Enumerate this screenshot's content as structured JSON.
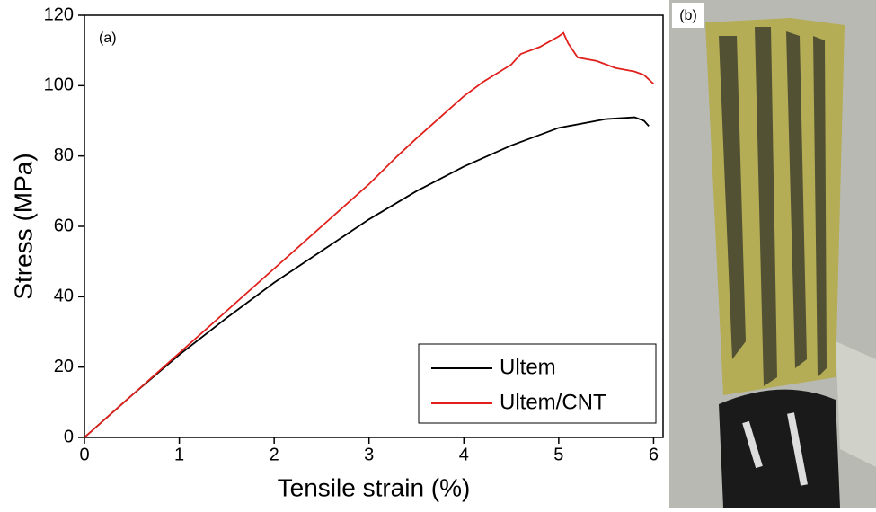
{
  "chart_data": {
    "type": "line",
    "xlabel": "Tensile strain (%)",
    "ylabel": "Stress (MPa)",
    "annotations": [
      "(a)",
      "(b)"
    ],
    "xlim": [
      0,
      6.1
    ],
    "ylim": [
      0,
      120
    ],
    "xticks": [
      0,
      1,
      2,
      3,
      4,
      5,
      6
    ],
    "yticks": [
      0,
      20,
      40,
      60,
      80,
      100,
      120
    ],
    "legend": "lower right",
    "series": [
      {
        "name": "Ultem",
        "color": "#000000",
        "x": [
          0,
          0.5,
          1,
          1.5,
          2,
          2.5,
          3,
          3.5,
          4,
          4.5,
          5,
          5.5,
          5.8,
          5.9,
          5.95
        ],
        "values": [
          0,
          12,
          23.5,
          34,
          44,
          53,
          62,
          70,
          77,
          83,
          88,
          90.5,
          91,
          90,
          88.5
        ]
      },
      {
        "name": "Ultem/CNT",
        "color": "#e0201b",
        "x": [
          0,
          0.5,
          1,
          1.5,
          2,
          2.5,
          3,
          3.3,
          3.5,
          4,
          4.2,
          4.5,
          4.6,
          4.8,
          5,
          5.05,
          5.1,
          5.2,
          5.4,
          5.6,
          5.8,
          5.9,
          6
        ],
        "values": [
          0,
          12,
          24,
          36,
          48,
          60,
          72,
          80,
          85,
          97,
          101,
          106,
          109,
          111,
          114,
          115,
          112,
          108,
          107,
          105,
          104,
          103,
          100.5
        ]
      }
    ]
  }
}
